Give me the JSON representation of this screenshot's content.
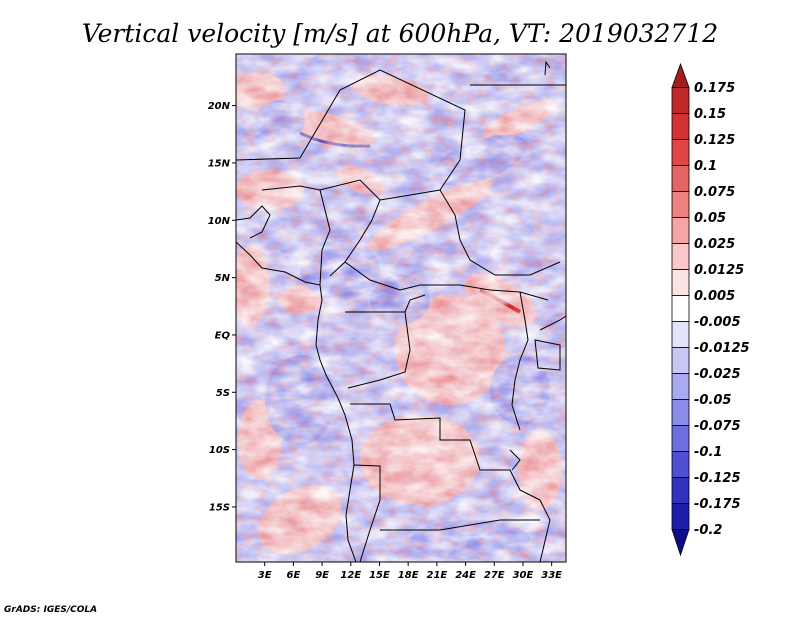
{
  "title": "Vertical velocity [m/s] at 600hPa, VT: 2019032712",
  "credit": "GrADS: IGES/COLA",
  "map": {
    "lat_labels": [
      "20N",
      "15N",
      "10N",
      "5N",
      "EQ",
      "5S",
      "10S",
      "15S"
    ],
    "lat_values": [
      20,
      15,
      10,
      5,
      0,
      -5,
      -10,
      -15
    ],
    "lon_labels": [
      "3E",
      "6E",
      "9E",
      "12E",
      "15E",
      "18E",
      "21E",
      "24E",
      "27E",
      "30E",
      "33E"
    ],
    "lon_values": [
      3,
      6,
      9,
      12,
      15,
      18,
      21,
      24,
      27,
      30,
      33
    ],
    "lon_range": [
      0,
      34.5
    ],
    "lat_range": [
      -19.8,
      24.5
    ]
  },
  "colorbar": {
    "labels": [
      "0.175",
      "0.15",
      "0.125",
      "0.1",
      "0.075",
      "0.05",
      "0.025",
      "0.0125",
      "0.005",
      "-0.005",
      "-0.0125",
      "-0.025",
      "-0.05",
      "-0.075",
      "-0.1",
      "-0.125",
      "-0.175",
      "-0.2"
    ],
    "colors": [
      "#a51e1e",
      "#be2828",
      "#d23232",
      "#e14646",
      "#e66464",
      "#ee8282",
      "#f5a5a5",
      "#fac8c8",
      "#fde4e4",
      "#ffffff",
      "#e4e4fa",
      "#c8c8f5",
      "#aaaaf0",
      "#8c8ceb",
      "#6e6ee1",
      "#5050d2",
      "#3232be",
      "#1e1eaa",
      "#0c0c8c"
    ]
  }
}
